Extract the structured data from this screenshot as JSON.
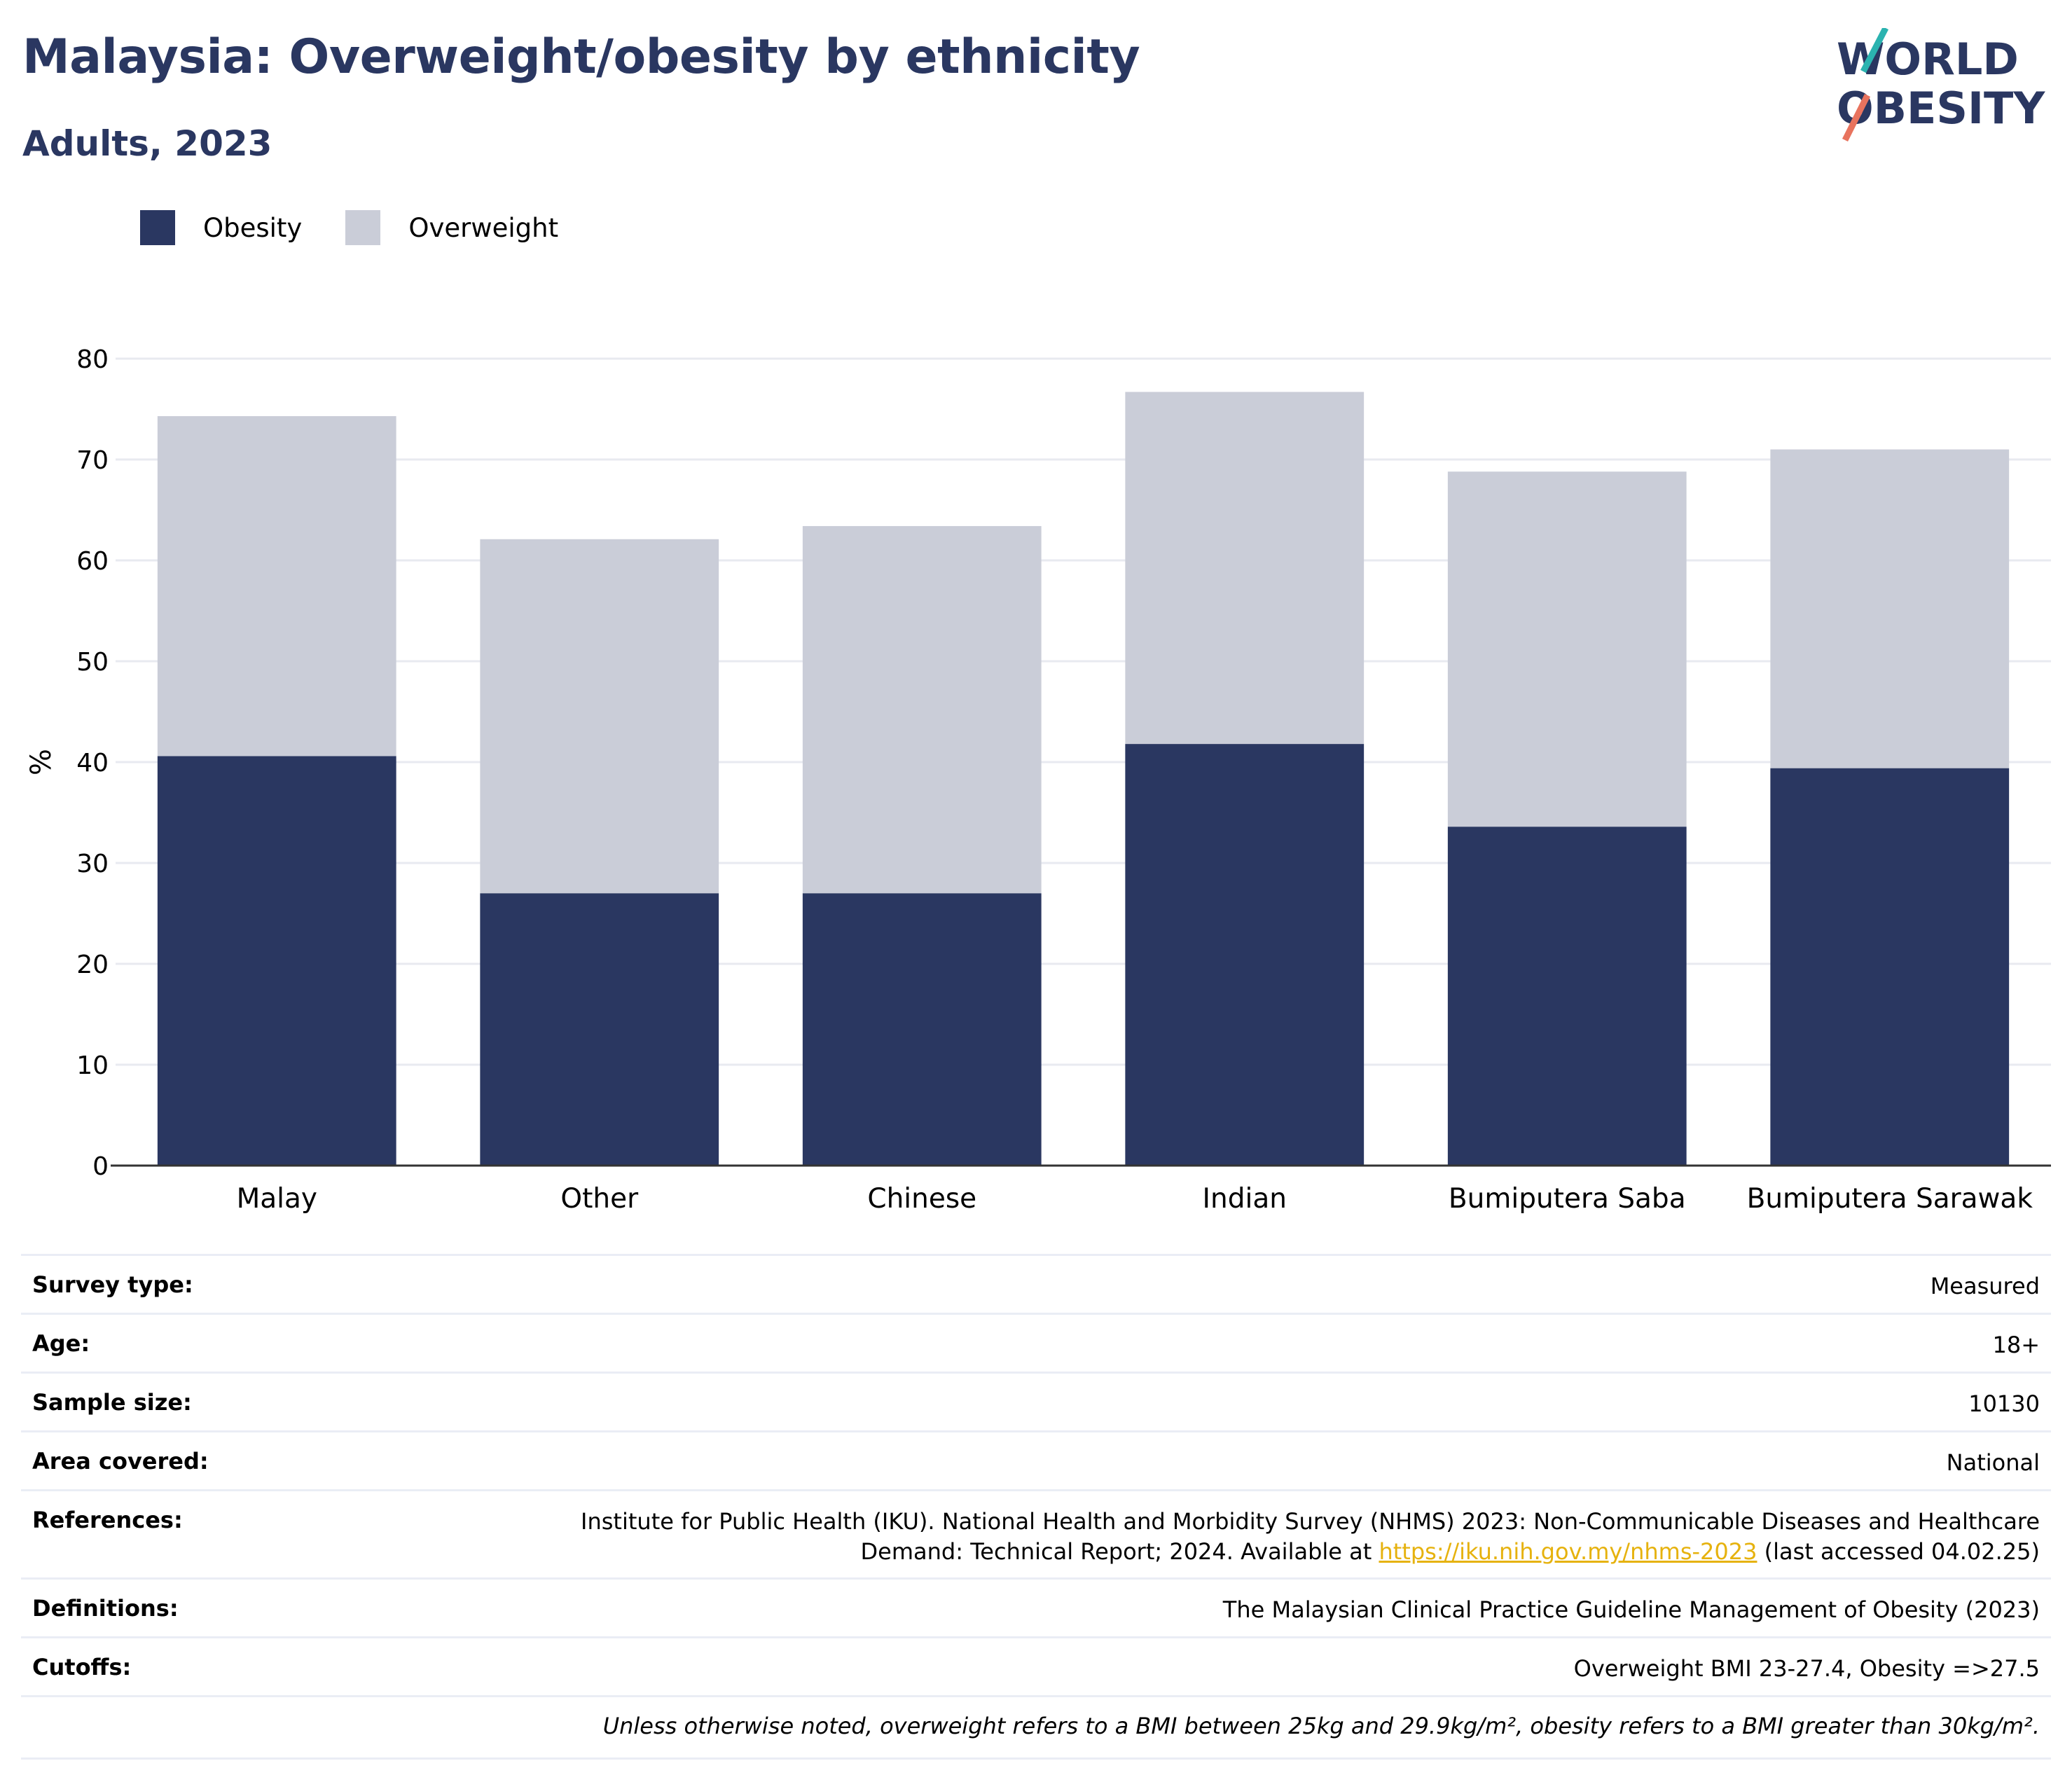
{
  "header": {
    "title": "Malaysia: Overweight/obesity by ethnicity",
    "subtitle": "Adults, 2023"
  },
  "logo": {
    "line1": "WORLD",
    "line2": "OBESITY",
    "colors": {
      "text": "#2a3761",
      "teal": "#2bb3b0",
      "coral": "#e8735e"
    }
  },
  "legend": [
    {
      "label": "Obesity",
      "color": "#2a3761"
    },
    {
      "label": "Overweight",
      "color": "#cacdd8"
    }
  ],
  "chart_data": {
    "type": "bar",
    "stacked": true,
    "categories": [
      "Malay",
      "Other",
      "Chinese",
      "Indian",
      "Bumiputera Saba",
      "Bumiputera Sarawak"
    ],
    "series": [
      {
        "name": "Obesity",
        "color": "#2a3761",
        "values": [
          40.6,
          27.0,
          27.0,
          41.8,
          33.6,
          39.4
        ]
      },
      {
        "name": "Overweight",
        "color": "#cacdd8",
        "values": [
          33.7,
          35.1,
          36.4,
          34.9,
          35.2,
          31.6
        ]
      }
    ],
    "ylabel": "%",
    "ylim": [
      0,
      80
    ],
    "yticks": [
      0,
      10,
      20,
      30,
      40,
      50,
      60,
      70,
      80
    ],
    "grid": true,
    "legend_position": "top-left"
  },
  "info": {
    "survey_type": {
      "label": "Survey type:",
      "value": "Measured"
    },
    "age": {
      "label": "Age:",
      "value": "18+"
    },
    "sample_size": {
      "label": "Sample size:",
      "value": "10130"
    },
    "area": {
      "label": "Area covered:",
      "value": "National"
    },
    "references": {
      "label": "References:",
      "line1": "Institute for Public Health (IKU). National Health and Morbidity Survey (NHMS) 2023: Non-Communicable Diseases and Healthcare",
      "line2_pre": "Demand: Technical Report; 2024. Available at",
      "link": "https://iku.nih.gov.my/nhms-2023",
      "line2_post": "(last accessed 04.02.25)"
    },
    "definitions": {
      "label": "Definitions:",
      "value": "The Malaysian Clinical Practice Guideline Management of Obesity (2023)"
    },
    "cutoffs": {
      "label": "Cutoffs:",
      "value": "Overweight BMI 23-27.4, Obesity =>27.5"
    },
    "note": "Unless otherwise noted, overweight refers to a BMI between 25kg and 29.9kg/m², obesity refers to a BMI greater than 30kg/m²."
  }
}
